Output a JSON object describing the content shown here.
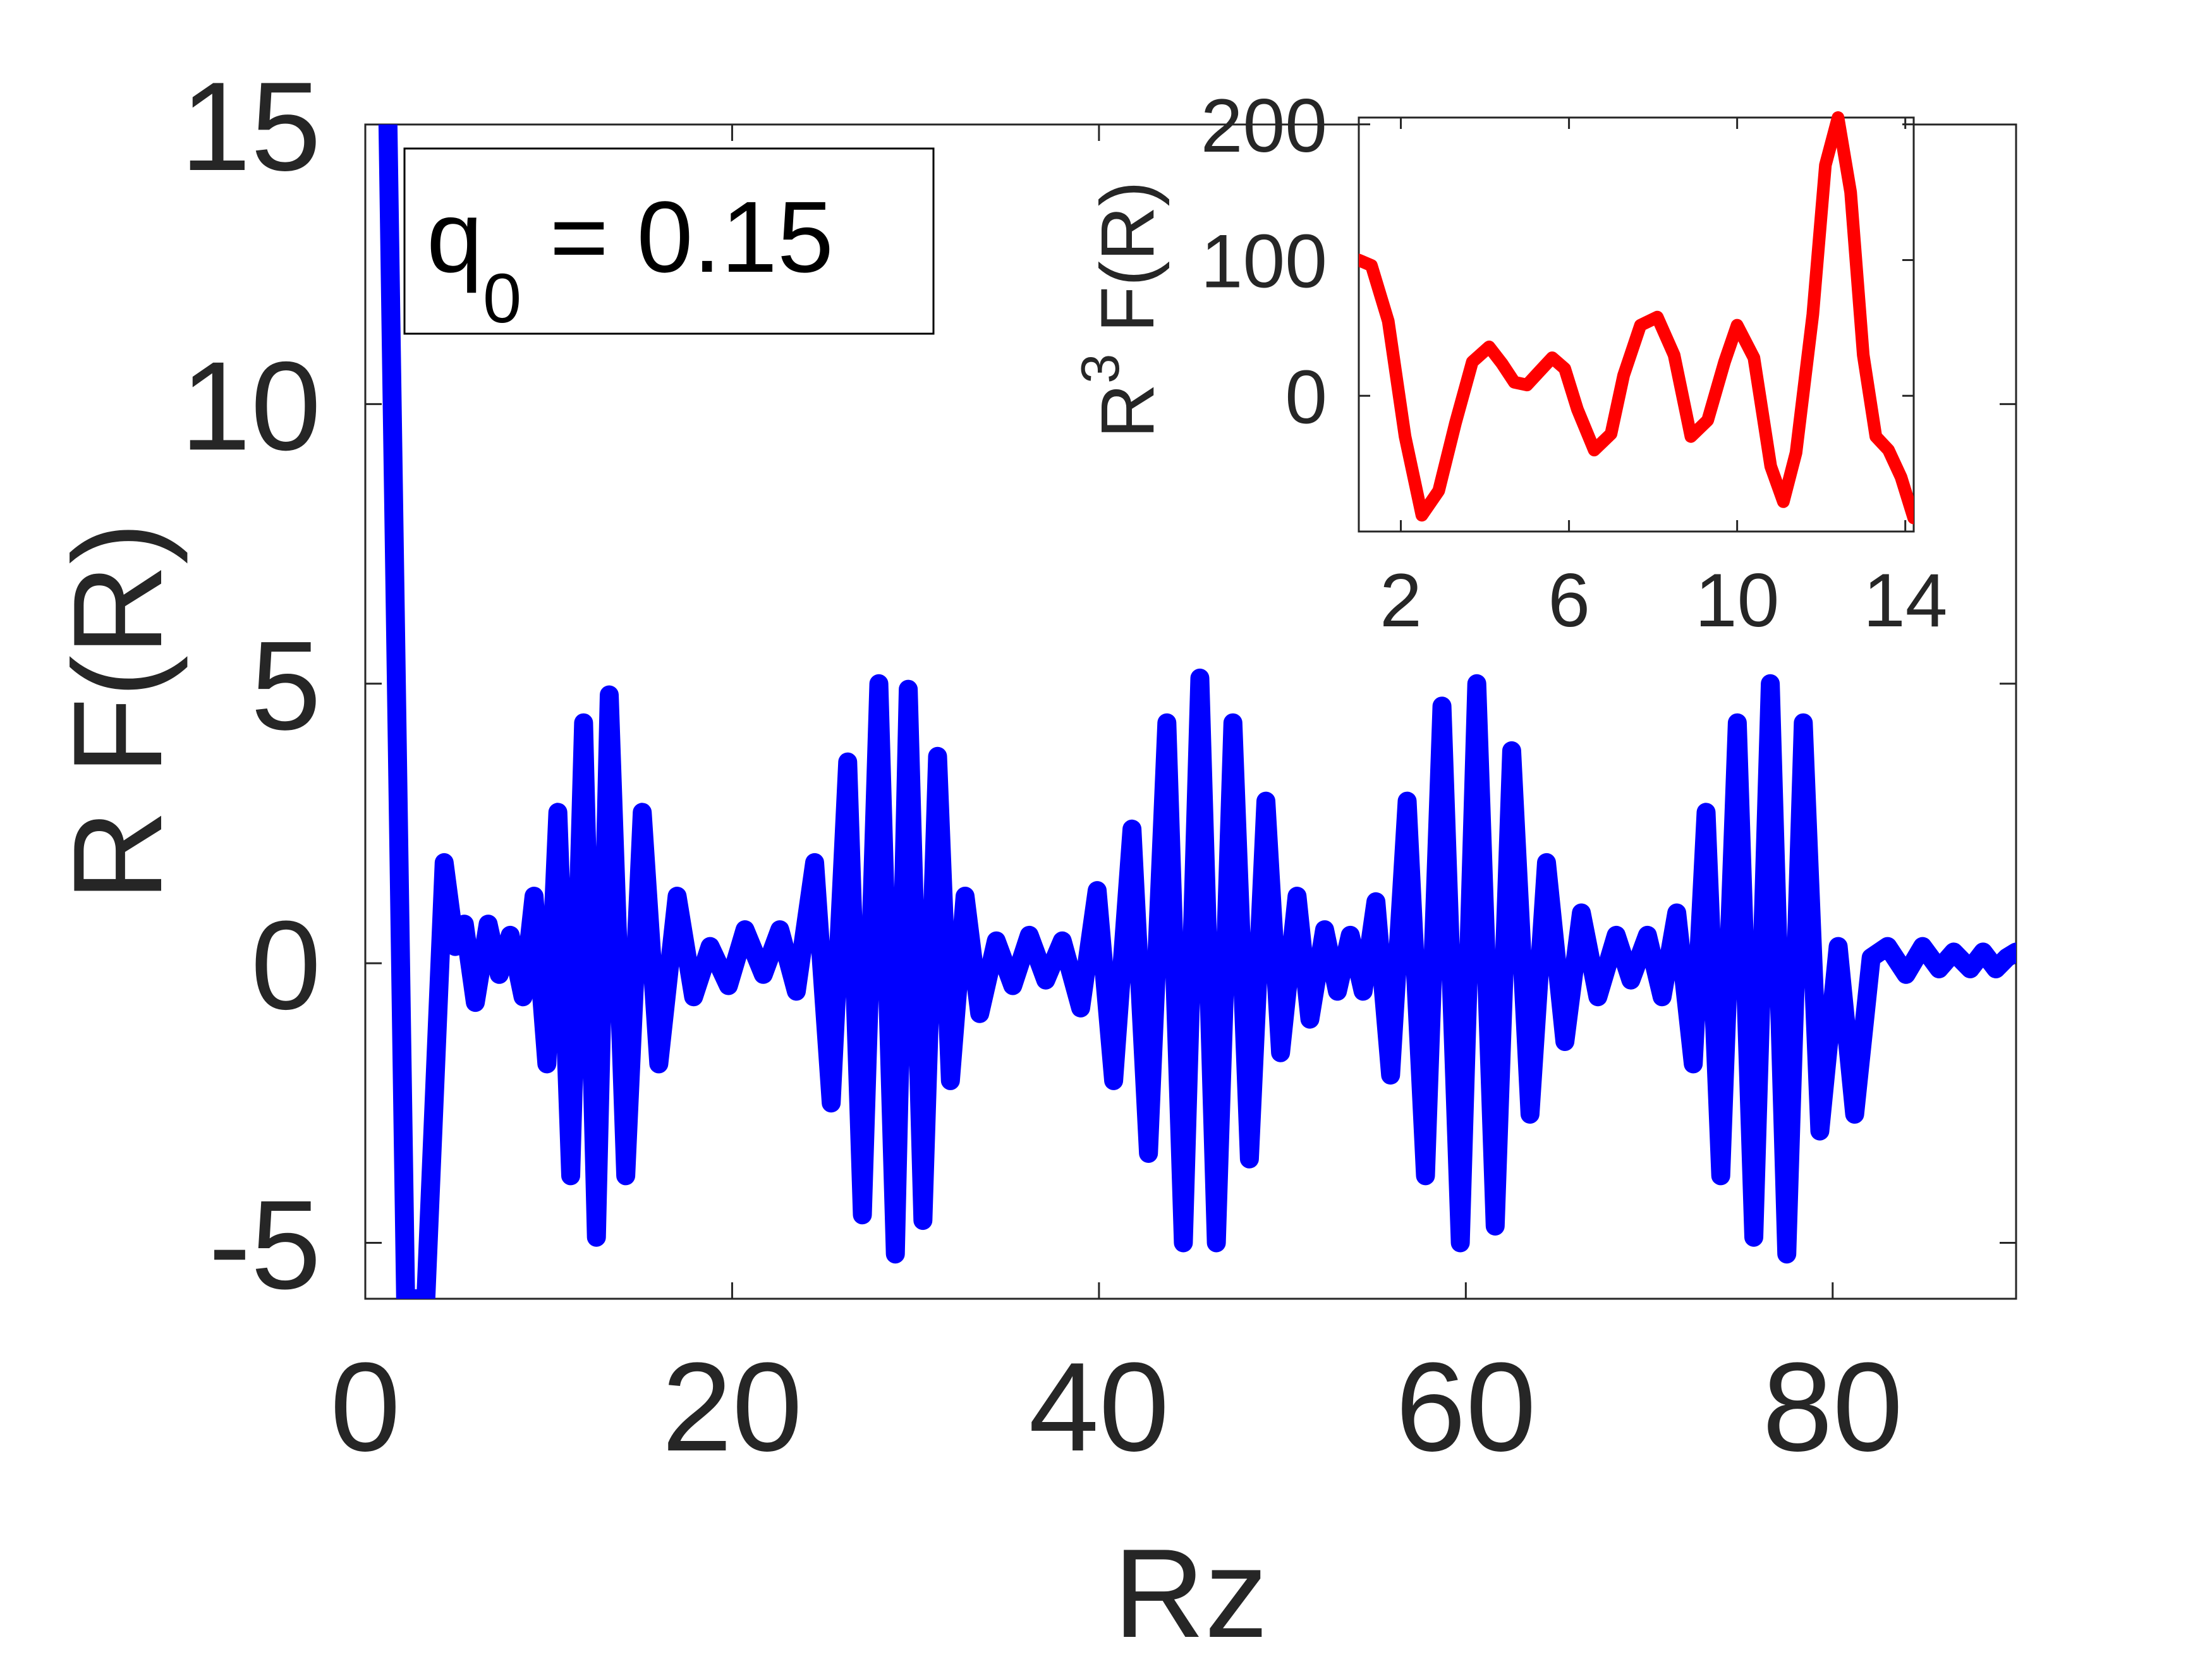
{
  "chart_data": [
    {
      "type": "line",
      "xlabel": "Rz",
      "ylabel": "R F(R)",
      "xlim": [
        0,
        90
      ],
      "ylim": [
        -6,
        15
      ],
      "xticks": [
        0,
        20,
        40,
        60,
        80
      ],
      "yticks": [
        -5,
        0,
        5,
        10,
        15
      ],
      "color": "#0000ff",
      "annotation": {
        "prefix": "q",
        "subscript": "0",
        "suffix": " =  0.15"
      },
      "series": [
        {
          "x": [
            1.2,
            2.2,
            3.3,
            4.3,
            4.9,
            5.4,
            6.0,
            6.7,
            7.3,
            7.9,
            8.6,
            9.2,
            9.9,
            10.5,
            11.2,
            11.9,
            12.6,
            13.3,
            14.2,
            15.1,
            16.0,
            17.0,
            17.9,
            18.8,
            19.8,
            20.7,
            21.7,
            22.6,
            23.5,
            24.5,
            25.4,
            26.3,
            27.1,
            28.0,
            28.9,
            29.6,
            30.4,
            31.2,
            31.9,
            32.7,
            33.5,
            34.4,
            35.3,
            36.2,
            37.1,
            38.0,
            39.0,
            39.9,
            40.8,
            41.8,
            42.7,
            43.7,
            44.6,
            45.5,
            46.4,
            47.3,
            48.2,
            49.1,
            49.9,
            50.8,
            51.5,
            52.3,
            53.0,
            53.7,
            54.4,
            55.1,
            55.9,
            56.8,
            57.8,
            58.7,
            59.7,
            60.6,
            61.6,
            62.5,
            63.5,
            64.4,
            65.4,
            66.3,
            67.2,
            68.2,
            69.0,
            69.9,
            70.7,
            71.5,
            72.4,
            73.1,
            73.9,
            74.8,
            75.7,
            76.6,
            77.5,
            78.4,
            79.3,
            80.3,
            81.2,
            82.1,
            83.0,
            84.0,
            84.9,
            85.8,
            86.6,
            87.5,
            88.2,
            88.9,
            89.5,
            90.0
          ],
          "y": [
            15.8,
            -6.0,
            -6.0,
            1.8,
            0.3,
            0.7,
            -0.7,
            0.7,
            -0.2,
            0.5,
            -0.6,
            1.2,
            -1.8,
            2.7,
            -3.8,
            4.3,
            -4.9,
            4.8,
            -3.8,
            2.7,
            -1.8,
            1.2,
            -0.6,
            0.3,
            -0.4,
            0.6,
            -0.2,
            0.6,
            -0.5,
            1.8,
            -2.5,
            3.6,
            -4.5,
            5.0,
            -5.2,
            4.9,
            -4.6,
            3.7,
            -2.1,
            1.2,
            -0.9,
            0.4,
            -0.4,
            0.5,
            -0.3,
            0.4,
            -0.8,
            1.3,
            -2.1,
            2.4,
            -3.4,
            4.3,
            -5.0,
            5.1,
            -5.0,
            4.3,
            -3.5,
            2.9,
            -1.6,
            1.2,
            -1.0,
            0.6,
            -0.5,
            0.5,
            -0.5,
            1.1,
            -2.0,
            2.9,
            -3.8,
            4.6,
            -5.0,
            5.0,
            -4.7,
            3.8,
            -2.7,
            1.8,
            -1.4,
            0.9,
            -0.6,
            0.5,
            -0.3,
            0.5,
            -0.6,
            0.9,
            -1.8,
            2.7,
            -3.8,
            4.3,
            -4.9,
            5.0,
            -5.2,
            4.3,
            -3.0,
            0.3,
            -2.7,
            0.1,
            0.3,
            -0.2,
            0.3,
            -0.1,
            0.2,
            -0.1,
            0.2,
            -0.1,
            0.1,
            0.2
          ]
        }
      ]
    },
    {
      "type": "line",
      "inset": true,
      "xlabel": "",
      "ylabel_base": "R",
      "ylabel_sup": "3",
      "ylabel_rest": " F(R)",
      "xlim": [
        1,
        14.2
      ],
      "ylim": [
        -100,
        205
      ],
      "xticks": [
        2,
        6,
        10,
        14
      ],
      "yticks": [
        0,
        100,
        200
      ],
      "color": "#ff0000",
      "series": [
        {
          "x": [
            1.0,
            1.3,
            1.7,
            2.1,
            2.5,
            2.9,
            3.3,
            3.7,
            4.1,
            4.4,
            4.7,
            5.0,
            5.3,
            5.6,
            5.9,
            6.2,
            6.6,
            7.0,
            7.3,
            7.7,
            8.1,
            8.5,
            8.9,
            9.3,
            9.7,
            10.0,
            10.4,
            10.8,
            11.1,
            11.4,
            11.8,
            12.1,
            12.4,
            12.7,
            13.0,
            13.3,
            13.6,
            13.9,
            14.2
          ],
          "y": [
            100,
            96,
            55,
            -30,
            -88,
            -70,
            -20,
            25,
            36,
            24,
            10,
            8,
            18,
            28,
            20,
            -10,
            -40,
            -28,
            15,
            52,
            58,
            30,
            -30,
            -18,
            25,
            52,
            28,
            -52,
            -78,
            -42,
            60,
            170,
            205,
            150,
            30,
            -30,
            -40,
            -60,
            -90
          ]
        }
      ]
    }
  ]
}
